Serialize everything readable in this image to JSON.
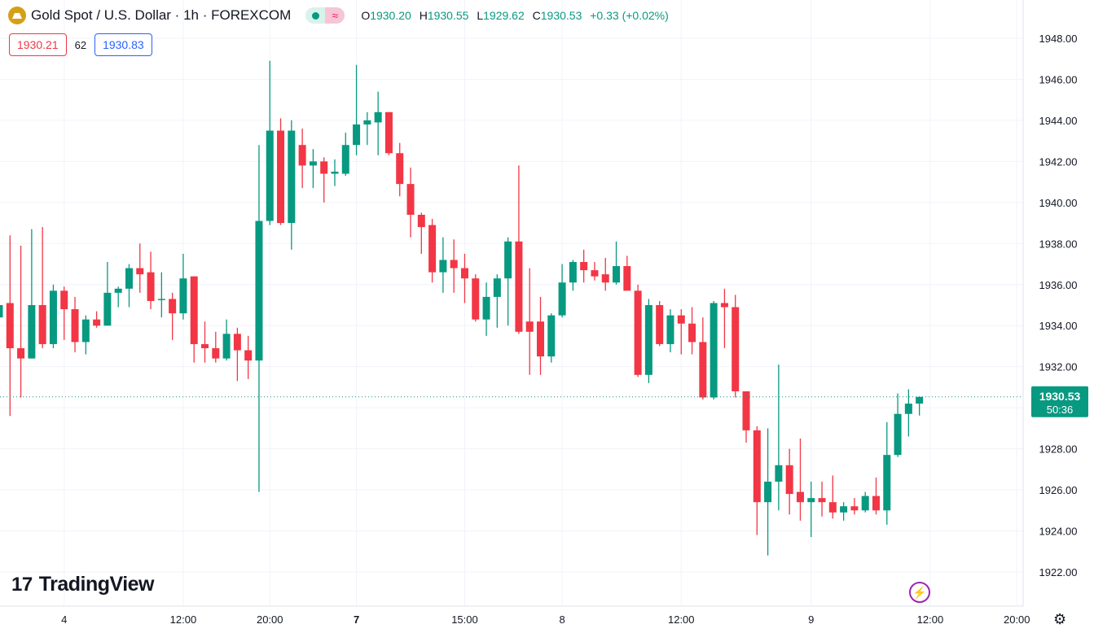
{
  "header": {
    "symbol": "Gold Spot / U.S. Dollar · 1h · FOREXCOM",
    "icons": [
      "market-open-dot-icon",
      "wave-icon"
    ],
    "o_label": "O",
    "o": "1930.20",
    "h_label": "H",
    "h": "1930.55",
    "l_label": "L",
    "l": "1929.62",
    "c_label": "C",
    "c": "1930.53",
    "change": "+0.33 (+0.02%)"
  },
  "quotes": {
    "sell": "1930.21",
    "spread": "62",
    "buy": "1930.83"
  },
  "branding": {
    "logo": "TradingView",
    "mark": "17"
  },
  "price_tag": {
    "price": "1930.53",
    "countdown": "50:36"
  },
  "colors": {
    "up": "#089981",
    "down": "#f23645",
    "grid": "#f0f3fa"
  },
  "chart_data": {
    "type": "candlestick",
    "title": "Gold Spot / U.S. Dollar · 1h · FOREXCOM",
    "ylim": [
      1921.2,
      1949.8
    ],
    "y_ticks": [
      1922,
      1924,
      1926,
      1928,
      1930,
      1932,
      1934,
      1936,
      1938,
      1940,
      1942,
      1944,
      1946,
      1948
    ],
    "x_ticks": [
      {
        "i": 6,
        "label": "4",
        "bold": false
      },
      {
        "i": 17,
        "label": "12:00"
      },
      {
        "i": 25,
        "label": "20:00"
      },
      {
        "i": 33,
        "label": "7",
        "bold": true
      },
      {
        "i": 43,
        "label": "15:00"
      },
      {
        "i": 52,
        "label": "8"
      },
      {
        "i": 63,
        "label": "12:00"
      },
      {
        "i": 75,
        "label": "9"
      },
      {
        "i": 86,
        "label": "12:00"
      },
      {
        "i": 94,
        "label": "20:00"
      }
    ],
    "last_price": 1930.53,
    "ohlc": [
      [
        1934.4,
        1935.1,
        1934.2,
        1935.0
      ],
      [
        1935.1,
        1938.4,
        1929.6,
        1932.9
      ],
      [
        1932.9,
        1937.9,
        1930.5,
        1932.4
      ],
      [
        1932.4,
        1938.7,
        1932.4,
        1935.0
      ],
      [
        1935.0,
        1938.8,
        1932.9,
        1933.1
      ],
      [
        1933.1,
        1936.0,
        1932.9,
        1935.7
      ],
      [
        1935.7,
        1935.9,
        1933.3,
        1934.8
      ],
      [
        1934.8,
        1935.4,
        1932.7,
        1933.2
      ],
      [
        1933.2,
        1934.5,
        1932.6,
        1934.3
      ],
      [
        1934.3,
        1934.7,
        1933.9,
        1934.0
      ],
      [
        1934.0,
        1937.1,
        1934.0,
        1935.6
      ],
      [
        1935.6,
        1935.9,
        1934.9,
        1935.8
      ],
      [
        1935.8,
        1937.0,
        1934.9,
        1936.8
      ],
      [
        1936.8,
        1938.0,
        1935.6,
        1936.5
      ],
      [
        1936.6,
        1937.6,
        1934.8,
        1935.2
      ],
      [
        1935.25,
        1936.6,
        1934.4,
        1935.3
      ],
      [
        1935.3,
        1935.6,
        1933.3,
        1934.6
      ],
      [
        1934.6,
        1937.5,
        1934.3,
        1936.3
      ],
      [
        1936.4,
        1936.4,
        1932.2,
        1933.1
      ],
      [
        1933.1,
        1934.2,
        1932.2,
        1932.9
      ],
      [
        1932.9,
        1933.7,
        1932.2,
        1932.4
      ],
      [
        1932.4,
        1934.3,
        1932.3,
        1933.6
      ],
      [
        1933.6,
        1933.9,
        1931.3,
        1932.8
      ],
      [
        1932.8,
        1933.5,
        1931.4,
        1932.3
      ],
      [
        1932.3,
        1942.8,
        1925.9,
        1939.1
      ],
      [
        1939.1,
        1946.9,
        1938.9,
        1943.5
      ],
      [
        1943.5,
        1944.1,
        1938.9,
        1939.0
      ],
      [
        1939.0,
        1944.0,
        1937.7,
        1943.5
      ],
      [
        1942.8,
        1943.6,
        1940.7,
        1941.8
      ],
      [
        1941.8,
        1942.6,
        1940.7,
        1942.0
      ],
      [
        1942.0,
        1942.2,
        1940.0,
        1941.4
      ],
      [
        1941.4,
        1942.1,
        1940.8,
        1941.5
      ],
      [
        1941.4,
        1943.4,
        1941.3,
        1942.8
      ],
      [
        1942.8,
        1946.7,
        1942.3,
        1943.8
      ],
      [
        1943.8,
        1944.4,
        1942.8,
        1944.0
      ],
      [
        1943.9,
        1945.4,
        1942.3,
        1944.4
      ],
      [
        1944.4,
        1944.4,
        1942.3,
        1942.4
      ],
      [
        1942.4,
        1942.9,
        1940.3,
        1940.9
      ],
      [
        1940.9,
        1941.7,
        1938.3,
        1939.4
      ],
      [
        1939.4,
        1939.5,
        1937.5,
        1938.8
      ],
      [
        1938.9,
        1939.2,
        1936.1,
        1936.6
      ],
      [
        1936.6,
        1938.3,
        1935.6,
        1937.2
      ],
      [
        1937.2,
        1938.2,
        1935.6,
        1936.8
      ],
      [
        1936.8,
        1937.5,
        1935.1,
        1936.3
      ],
      [
        1936.3,
        1936.5,
        1934.2,
        1934.3
      ],
      [
        1934.3,
        1936.1,
        1933.5,
        1935.4
      ],
      [
        1935.4,
        1936.5,
        1933.9,
        1936.3
      ],
      [
        1936.3,
        1938.3,
        1934.0,
        1938.1
      ],
      [
        1938.1,
        1941.8,
        1933.6,
        1933.7
      ],
      [
        1934.2,
        1936.8,
        1931.6,
        1933.7
      ],
      [
        1934.2,
        1935.4,
        1931.6,
        1932.5
      ],
      [
        1932.5,
        1934.6,
        1932.2,
        1934.5
      ],
      [
        1934.5,
        1937.0,
        1934.4,
        1936.1
      ],
      [
        1936.1,
        1937.2,
        1935.7,
        1937.1
      ],
      [
        1937.1,
        1937.7,
        1936.1,
        1936.7
      ],
      [
        1936.7,
        1937.1,
        1936.2,
        1936.4
      ],
      [
        1936.5,
        1937.3,
        1935.7,
        1936.1
      ],
      [
        1936.1,
        1938.1,
        1936.0,
        1936.9
      ],
      [
        1936.9,
        1937.4,
        1935.7,
        1935.7
      ],
      [
        1935.7,
        1936.0,
        1931.5,
        1931.6
      ],
      [
        1931.6,
        1935.3,
        1931.2,
        1935.0
      ],
      [
        1935.0,
        1935.2,
        1933.0,
        1933.1
      ],
      [
        1933.1,
        1934.8,
        1932.7,
        1934.5
      ],
      [
        1934.5,
        1934.8,
        1932.6,
        1934.1
      ],
      [
        1934.1,
        1934.9,
        1932.6,
        1933.2
      ],
      [
        1933.2,
        1934.4,
        1930.4,
        1930.5
      ],
      [
        1930.5,
        1935.2,
        1930.4,
        1935.1
      ],
      [
        1935.1,
        1935.8,
        1932.9,
        1934.9
      ],
      [
        1934.9,
        1935.5,
        1930.5,
        1930.8
      ],
      [
        1930.8,
        1930.8,
        1928.3,
        1928.9
      ],
      [
        1928.9,
        1929.1,
        1923.8,
        1925.4
      ],
      [
        1925.4,
        1929.0,
        1922.8,
        1926.4
      ],
      [
        1926.4,
        1932.1,
        1925.0,
        1927.2
      ],
      [
        1927.2,
        1928.0,
        1924.8,
        1925.8
      ],
      [
        1925.9,
        1928.5,
        1924.5,
        1925.4
      ],
      [
        1925.4,
        1926.4,
        1923.7,
        1925.6
      ],
      [
        1925.6,
        1926.4,
        1924.7,
        1925.4
      ],
      [
        1925.4,
        1926.7,
        1924.6,
        1924.9
      ],
      [
        1924.9,
        1925.4,
        1924.5,
        1925.2
      ],
      [
        1925.2,
        1925.6,
        1924.8,
        1925.0
      ],
      [
        1925.0,
        1925.9,
        1924.9,
        1925.7
      ],
      [
        1925.7,
        1926.6,
        1924.8,
        1925.0
      ],
      [
        1925.0,
        1929.3,
        1924.3,
        1927.7
      ],
      [
        1927.7,
        1930.7,
        1927.6,
        1929.7
      ],
      [
        1929.7,
        1930.9,
        1928.6,
        1930.2
      ],
      [
        1930.2,
        1930.55,
        1929.62,
        1930.53
      ]
    ]
  }
}
